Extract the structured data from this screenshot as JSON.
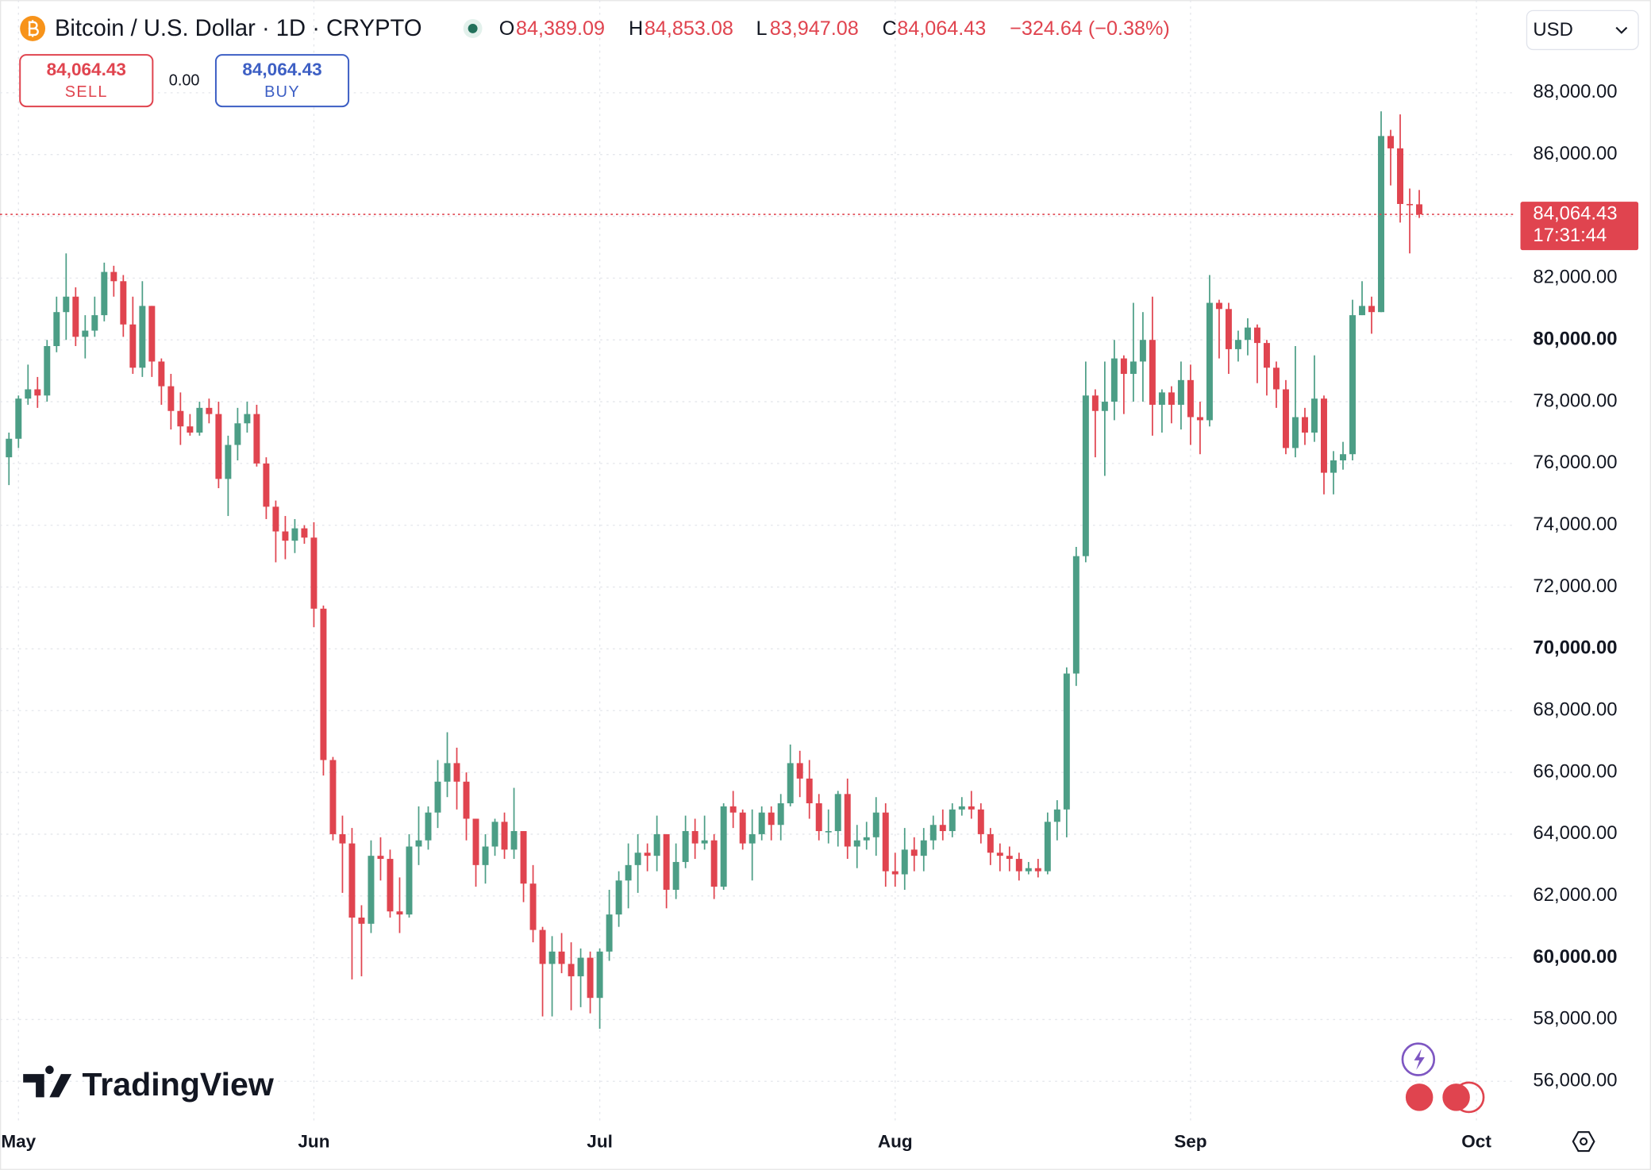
{
  "header": {
    "symbol": "Bitcoin / U.S. Dollar · 1D · CRYPTO",
    "ohlc": [
      {
        "key": "O",
        "value": "84,389.09"
      },
      {
        "key": "H",
        "value": "84,853.08"
      },
      {
        "key": "L",
        "value": "83,947.08"
      },
      {
        "key": "C",
        "value": "84,064.43"
      }
    ],
    "change": "−324.64 (−0.38%)",
    "currency": "USD"
  },
  "trade": {
    "sell_price": "84,064.43",
    "sell_label": "SELL",
    "spread": "0.00",
    "buy_price": "84,064.43",
    "buy_label": "BUY"
  },
  "price_label": {
    "price": "84,064.43",
    "countdown": "17:31:44"
  },
  "logo": "TradingView",
  "chart_data": {
    "type": "candlestick",
    "up_color": "#4c9e86",
    "down_color": "#e0444f",
    "grid": true,
    "ylim": [
      54700,
      91000
    ],
    "yticks": [
      {
        "value": 56000,
        "label": "56,000.00"
      },
      {
        "value": 58000,
        "label": "58,000.00"
      },
      {
        "value": 60000,
        "label": "60,000.00"
      },
      {
        "value": 62000,
        "label": "62,000.00"
      },
      {
        "value": 64000,
        "label": "64,000.00"
      },
      {
        "value": 66000,
        "label": "66,000.00"
      },
      {
        "value": 68000,
        "label": "68,000.00"
      },
      {
        "value": 70000,
        "label": "70,000.00"
      },
      {
        "value": 72000,
        "label": "72,000.00"
      },
      {
        "value": 74000,
        "label": "74,000.00"
      },
      {
        "value": 76000,
        "label": "76,000.00"
      },
      {
        "value": 78000,
        "label": "78,000.00"
      },
      {
        "value": 80000,
        "label": "80,000.00"
      },
      {
        "value": 82000,
        "label": "82,000.00"
      },
      {
        "value": 84000,
        "label": "84,000.00"
      },
      {
        "value": 86000,
        "label": "86,000.00"
      },
      {
        "value": 88000,
        "label": "88,000.00"
      }
    ],
    "categories": [
      null,
      "May",
      null,
      null,
      null,
      null,
      null,
      null,
      null,
      null,
      null,
      null,
      null,
      null,
      null,
      null,
      null,
      null,
      null,
      null,
      null,
      null,
      null,
      null,
      null,
      null,
      null,
      null,
      null,
      null,
      null,
      null,
      "Jun",
      null,
      null,
      null,
      null,
      null,
      null,
      null,
      null,
      null,
      null,
      null,
      null,
      null,
      null,
      null,
      null,
      null,
      null,
      null,
      null,
      null,
      null,
      null,
      null,
      null,
      null,
      null,
      null,
      null,
      "Jul",
      null,
      null,
      null,
      null,
      null,
      null,
      null,
      null,
      null,
      null,
      null,
      null,
      null,
      null,
      null,
      null,
      null,
      null,
      null,
      null,
      null,
      null,
      null,
      null,
      null,
      null,
      null,
      null,
      null,
      null,
      "Aug",
      null,
      null,
      null,
      null,
      null,
      null,
      null,
      null,
      null,
      null,
      null,
      null,
      null,
      null,
      null,
      null,
      null,
      null,
      null,
      null,
      null,
      null,
      null,
      null,
      null,
      null,
      null,
      null,
      null,
      null,
      "Sep",
      null,
      null,
      null,
      null,
      null,
      null,
      null,
      null,
      null,
      null,
      null,
      null,
      null,
      null,
      null,
      null,
      null,
      null,
      null,
      null,
      null,
      null,
      null,
      null,
      null,
      null,
      null,
      null,
      null,
      "Oct"
    ],
    "open": [
      76200,
      76800,
      78100,
      78400,
      78200,
      79800,
      80900,
      81400,
      80100,
      80300,
      80800,
      82200,
      81900,
      80500,
      79100,
      81100,
      79300,
      78500,
      77700,
      77200,
      77000,
      77800,
      77600,
      75500,
      76600,
      77300,
      77600,
      76000,
      74600,
      73800,
      73500,
      73900,
      73600,
      71300,
      66400,
      64000,
      63700,
      61300,
      61100,
      63300,
      63200,
      61500,
      61400,
      63600,
      63800,
      64700,
      65700,
      66300,
      65700,
      64500,
      63000,
      63600,
      64400,
      63500,
      64100,
      62400,
      60900,
      59800,
      60200,
      59800,
      59400,
      60000,
      58700,
      60200,
      61400,
      62500,
      63000,
      63400,
      63300,
      64000,
      62200,
      63100,
      64100,
      63700,
      63800,
      62300,
      64900,
      64700,
      63700,
      64000,
      64700,
      64300,
      65000,
      66300,
      65800,
      65000,
      64100,
      64100,
      65300,
      63600,
      63800,
      63900,
      64700,
      62800,
      62700,
      63500,
      63300,
      63800,
      64300,
      64100,
      64800,
      64900,
      64800,
      64000,
      63400,
      63300,
      63200,
      62800,
      62900,
      62800,
      64400,
      64800,
      69200,
      73000,
      78200,
      77700,
      78000,
      79400,
      78900,
      79300,
      80000,
      77900,
      78300,
      77900,
      78700,
      77500,
      77400,
      81200,
      81000,
      79700,
      80000,
      80400,
      79900,
      79100,
      78400,
      76500,
      77500,
      77000,
      78100,
      75700,
      76100,
      76300,
      80800,
      81100,
      80900,
      86600,
      86200,
      84400,
      84389.09,
      null,
      null,
      null,
      null,
      null,
      null
    ],
    "high": [
      77000,
      78200,
      79200,
      78800,
      80000,
      81400,
      82800,
      81700,
      80800,
      81400,
      82500,
      82400,
      82100,
      81400,
      81900,
      81100,
      79400,
      78900,
      78300,
      77600,
      78000,
      78100,
      78000,
      76900,
      77800,
      78000,
      77900,
      76200,
      74800,
      74300,
      74200,
      74000,
      74100,
      71400,
      66500,
      64600,
      64200,
      61700,
      63800,
      63900,
      63500,
      62600,
      64000,
      64900,
      64900,
      66400,
      67300,
      66800,
      66000,
      64500,
      64000,
      64500,
      64700,
      65500,
      64100,
      63000,
      61000,
      60700,
      60800,
      60500,
      60300,
      60200,
      60300,
      62200,
      62800,
      63700,
      64000,
      63700,
      64600,
      64000,
      63700,
      64600,
      64500,
      64600,
      64000,
      65000,
      65400,
      64800,
      64800,
      64900,
      64900,
      65300,
      66900,
      66700,
      66400,
      65300,
      64800,
      65400,
      65800,
      64300,
      64400,
      65200,
      65000,
      63400,
      64200,
      63900,
      64200,
      64600,
      64800,
      65000,
      65200,
      65400,
      65000,
      64200,
      63700,
      63600,
      63400,
      63100,
      63200,
      64700,
      65100,
      69400,
      73300,
      79300,
      78400,
      79300,
      80000,
      79500,
      81200,
      80900,
      81400,
      78400,
      78500,
      79300,
      79200,
      78000,
      82100,
      81300,
      81200,
      80300,
      80700,
      80500,
      80000,
      79300,
      78700,
      79800,
      77800,
      79500,
      78200,
      76400,
      76700,
      81300,
      81900,
      81400,
      87400,
      86800,
      87300,
      84900,
      84853.08,
      null,
      null,
      null,
      null,
      null,
      null
    ],
    "low": [
      75300,
      76500,
      77900,
      77800,
      78000,
      79600,
      80000,
      79800,
      79400,
      80100,
      80600,
      81400,
      80100,
      78900,
      78800,
      78800,
      77900,
      77100,
      76600,
      76900,
      76900,
      77300,
      75200,
      74300,
      76100,
      77000,
      75900,
      74200,
      72800,
      72900,
      73100,
      73400,
      70700,
      65900,
      63800,
      62100,
      59300,
      59400,
      60800,
      62500,
      61300,
      60800,
      61300,
      63000,
      63500,
      64200,
      65200,
      64800,
      63800,
      62300,
      62400,
      63300,
      63200,
      63200,
      61800,
      60500,
      58100,
      58100,
      59500,
      58300,
      58400,
      58200,
      57700,
      59900,
      61000,
      61600,
      62100,
      62800,
      62800,
      61600,
      61900,
      62900,
      63200,
      63500,
      61900,
      62200,
      64200,
      63500,
      62500,
      63800,
      63800,
      63800,
      64900,
      65200,
      64500,
      63800,
      63700,
      63600,
      63200,
      62900,
      63500,
      63300,
      62300,
      62300,
      62200,
      62800,
      62800,
      63500,
      63800,
      63900,
      64600,
      64500,
      63700,
      63000,
      62800,
      62800,
      62500,
      62700,
      62600,
      62700,
      63800,
      63900,
      68800,
      72800,
      76200,
      75600,
      77400,
      77600,
      78000,
      78000,
      76900,
      77000,
      77300,
      77100,
      76600,
      76300,
      77200,
      79400,
      78900,
      79300,
      79500,
      78600,
      78200,
      77800,
      76300,
      76200,
      76600,
      76700,
      75000,
      75000,
      75800,
      76100,
      80800,
      80200,
      80900,
      85000,
      83800,
      82800,
      83947.08,
      null,
      null,
      null,
      null,
      null,
      null
    ],
    "close": [
      76800,
      78100,
      78400,
      78200,
      79800,
      80900,
      81400,
      80100,
      80300,
      80800,
      82200,
      81900,
      80500,
      79100,
      81100,
      79300,
      78500,
      77700,
      77200,
      77000,
      77800,
      77600,
      75500,
      76600,
      77300,
      77600,
      76000,
      74600,
      73800,
      73500,
      73900,
      73600,
      71300,
      66400,
      64000,
      63700,
      61300,
      61100,
      63300,
      63200,
      61500,
      61400,
      63600,
      63800,
      64700,
      65700,
      66300,
      65700,
      64500,
      63000,
      63600,
      64400,
      63500,
      64100,
      62400,
      60900,
      59800,
      60200,
      59800,
      59400,
      60000,
      58700,
      60200,
      61400,
      62500,
      63000,
      63400,
      63300,
      64000,
      62200,
      63100,
      64100,
      63700,
      63800,
      62300,
      64900,
      64700,
      63700,
      64000,
      64700,
      64300,
      65000,
      66300,
      65800,
      65000,
      64100,
      64100,
      65300,
      63600,
      63800,
      63900,
      64700,
      62800,
      62700,
      63500,
      63300,
      63800,
      64300,
      64100,
      64800,
      64900,
      64800,
      64000,
      63400,
      63300,
      63200,
      62800,
      62900,
      62800,
      64400,
      64800,
      69200,
      73000,
      78200,
      77700,
      78000,
      79400,
      78900,
      79300,
      80000,
      77900,
      78300,
      77900,
      78700,
      77500,
      77400,
      81200,
      81000,
      79700,
      80000,
      80400,
      79900,
      79100,
      78400,
      76500,
      77500,
      77000,
      78100,
      75700,
      76100,
      76300,
      80800,
      81100,
      80900,
      86600,
      86200,
      84400,
      84389.09,
      84064.43,
      null,
      null,
      null,
      null,
      null,
      null
    ]
  }
}
